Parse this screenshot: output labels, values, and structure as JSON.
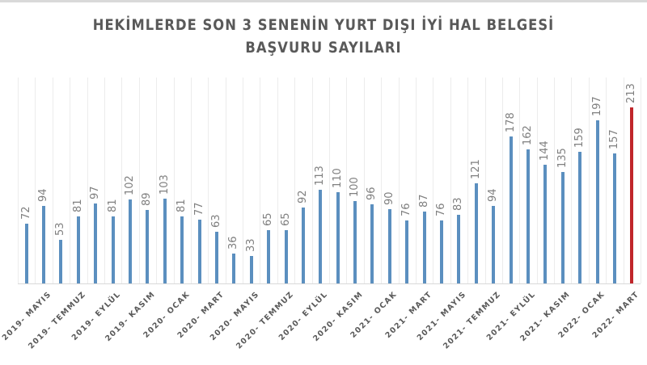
{
  "chart_data": {
    "type": "bar",
    "title": "HEKİMLERDE  SON 3 SENENİN  YURT DIŞI İYİ HAL BELGESİ",
    "subtitle": "BAŞVURU  SAYILARI",
    "xlabel": "",
    "ylabel": "",
    "grid": "vertical category gridlines",
    "legend": "none",
    "data_labels": "rotated -90°, above each bar",
    "tick_labels": [
      "2019- MAYIS",
      "2019- TEMMUZ",
      "2019- EYLÜL",
      "2019- KASIM",
      "2020- OCAK",
      "2020- MART",
      "2020- MAYIS",
      "2020- TEMMUZ",
      "2020- EYLÜL",
      "2020- KASIM",
      "2021- OCAK",
      "2021- MART",
      "2021- MAYIS",
      "2021- TEMMUZ",
      "2021- EYLÜL",
      "2021- KASIM",
      "2022- OCAK",
      "2022- MART"
    ],
    "tick_label_every": 2,
    "tick_label_start_index": 1,
    "values": [
      72,
      94,
      53,
      81,
      97,
      81,
      102,
      89,
      103,
      81,
      77,
      63,
      36,
      33,
      65,
      65,
      92,
      113,
      110,
      100,
      96,
      90,
      76,
      87,
      76,
      83,
      121,
      94,
      178,
      162,
      144,
      135,
      159,
      197,
      157,
      213
    ],
    "colors": {
      "bar": "#5b8fbf",
      "highlight": "#c0262b",
      "highlight_index": 35
    },
    "ylim": [
      0,
      250
    ]
  }
}
